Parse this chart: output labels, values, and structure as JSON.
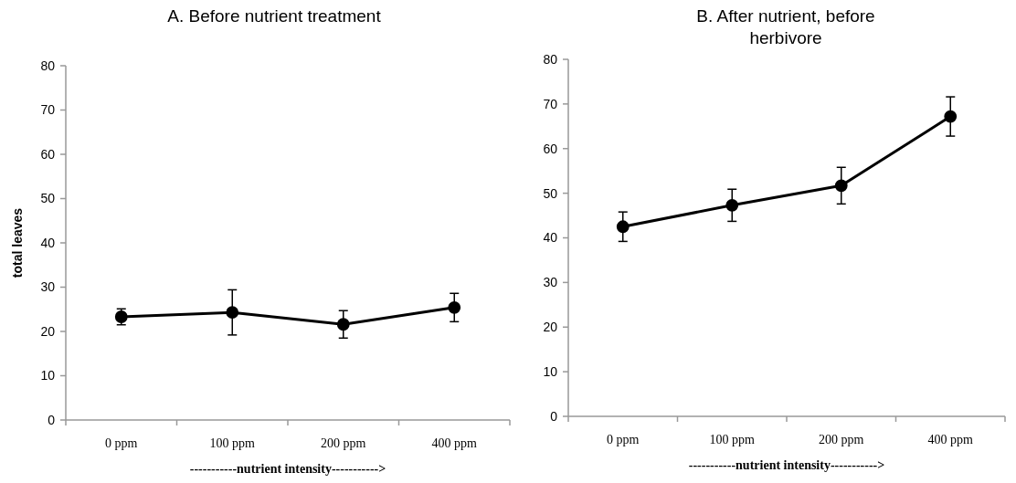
{
  "chart_data": [
    {
      "type": "line",
      "title": "A. Before nutrient treatment",
      "xlabel": "-----------nutrient intensity----------->",
      "ylabel": "total leaves",
      "categories": [
        "0 ppm",
        "100 ppm",
        "200 ppm",
        "400 ppm"
      ],
      "series": [
        {
          "color": "#000000",
          "values": [
            23.3,
            24.3,
            21.6,
            25.4
          ],
          "errors": [
            1.8,
            5.1,
            3.1,
            3.2
          ]
        }
      ],
      "ylim": [
        0,
        80
      ],
      "yticks": [
        0,
        10,
        20,
        30,
        40,
        50,
        60,
        70,
        80
      ],
      "marker": "circle"
    },
    {
      "type": "line",
      "title": "B. After nutrient, before herbivore",
      "xlabel": "-----------nutrient intensity----------->",
      "categories": [
        "0 ppm",
        "100 ppm",
        "200 ppm",
        "400 ppm"
      ],
      "series": [
        {
          "color": "#000000",
          "values": [
            42.5,
            47.3,
            51.7,
            67.2
          ],
          "errors": [
            3.3,
            3.6,
            4.1,
            4.4
          ]
        }
      ],
      "ylim": [
        0,
        80
      ],
      "yticks": [
        0,
        10,
        20,
        30,
        40,
        50,
        60,
        70,
        80
      ],
      "marker": "circle"
    }
  ]
}
